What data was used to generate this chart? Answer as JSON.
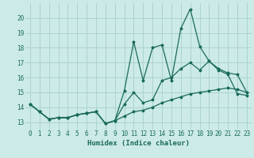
{
  "xlabel": "Humidex (Indice chaleur)",
  "xlim": [
    -0.5,
    23.5
  ],
  "ylim": [
    12.5,
    21.0
  ],
  "yticks": [
    13,
    14,
    15,
    16,
    17,
    18,
    19,
    20
  ],
  "xticks": [
    0,
    1,
    2,
    3,
    4,
    5,
    6,
    7,
    8,
    9,
    10,
    11,
    12,
    13,
    14,
    15,
    16,
    17,
    18,
    19,
    20,
    21,
    22,
    23
  ],
  "bg_color": "#cceae7",
  "grid_color": "#aad4d0",
  "line_color": "#1a6b5a",
  "line1_x": [
    0,
    1,
    2,
    3,
    4,
    5,
    6,
    7,
    8,
    9,
    10,
    11,
    12,
    13,
    14,
    15,
    16,
    17,
    18,
    19,
    20,
    21,
    22,
    23
  ],
  "line1_y": [
    14.2,
    13.7,
    13.2,
    13.3,
    13.3,
    13.5,
    13.6,
    13.7,
    12.9,
    13.1,
    15.1,
    18.4,
    15.8,
    18.0,
    18.2,
    15.8,
    19.3,
    20.6,
    18.1,
    17.1,
    16.5,
    16.2,
    14.9,
    14.8
  ],
  "line2_x": [
    0,
    1,
    2,
    3,
    4,
    5,
    6,
    7,
    8,
    9,
    10,
    11,
    12,
    13,
    14,
    15,
    16,
    17,
    18,
    19,
    20,
    21,
    22,
    23
  ],
  "line2_y": [
    14.2,
    13.7,
    13.2,
    13.3,
    13.3,
    13.5,
    13.6,
    13.7,
    12.9,
    13.1,
    14.2,
    15.0,
    14.3,
    14.5,
    15.8,
    16.0,
    16.6,
    17.0,
    16.5,
    17.1,
    16.6,
    16.3,
    16.2,
    15.0
  ],
  "line3_x": [
    0,
    1,
    2,
    3,
    4,
    5,
    6,
    7,
    8,
    9,
    10,
    11,
    12,
    13,
    14,
    15,
    16,
    17,
    18,
    19,
    20,
    21,
    22,
    23
  ],
  "line3_y": [
    14.2,
    13.7,
    13.2,
    13.3,
    13.3,
    13.5,
    13.6,
    13.7,
    12.9,
    13.1,
    13.4,
    13.7,
    13.8,
    14.0,
    14.3,
    14.5,
    14.7,
    14.9,
    15.0,
    15.1,
    15.2,
    15.3,
    15.2,
    15.0
  ]
}
